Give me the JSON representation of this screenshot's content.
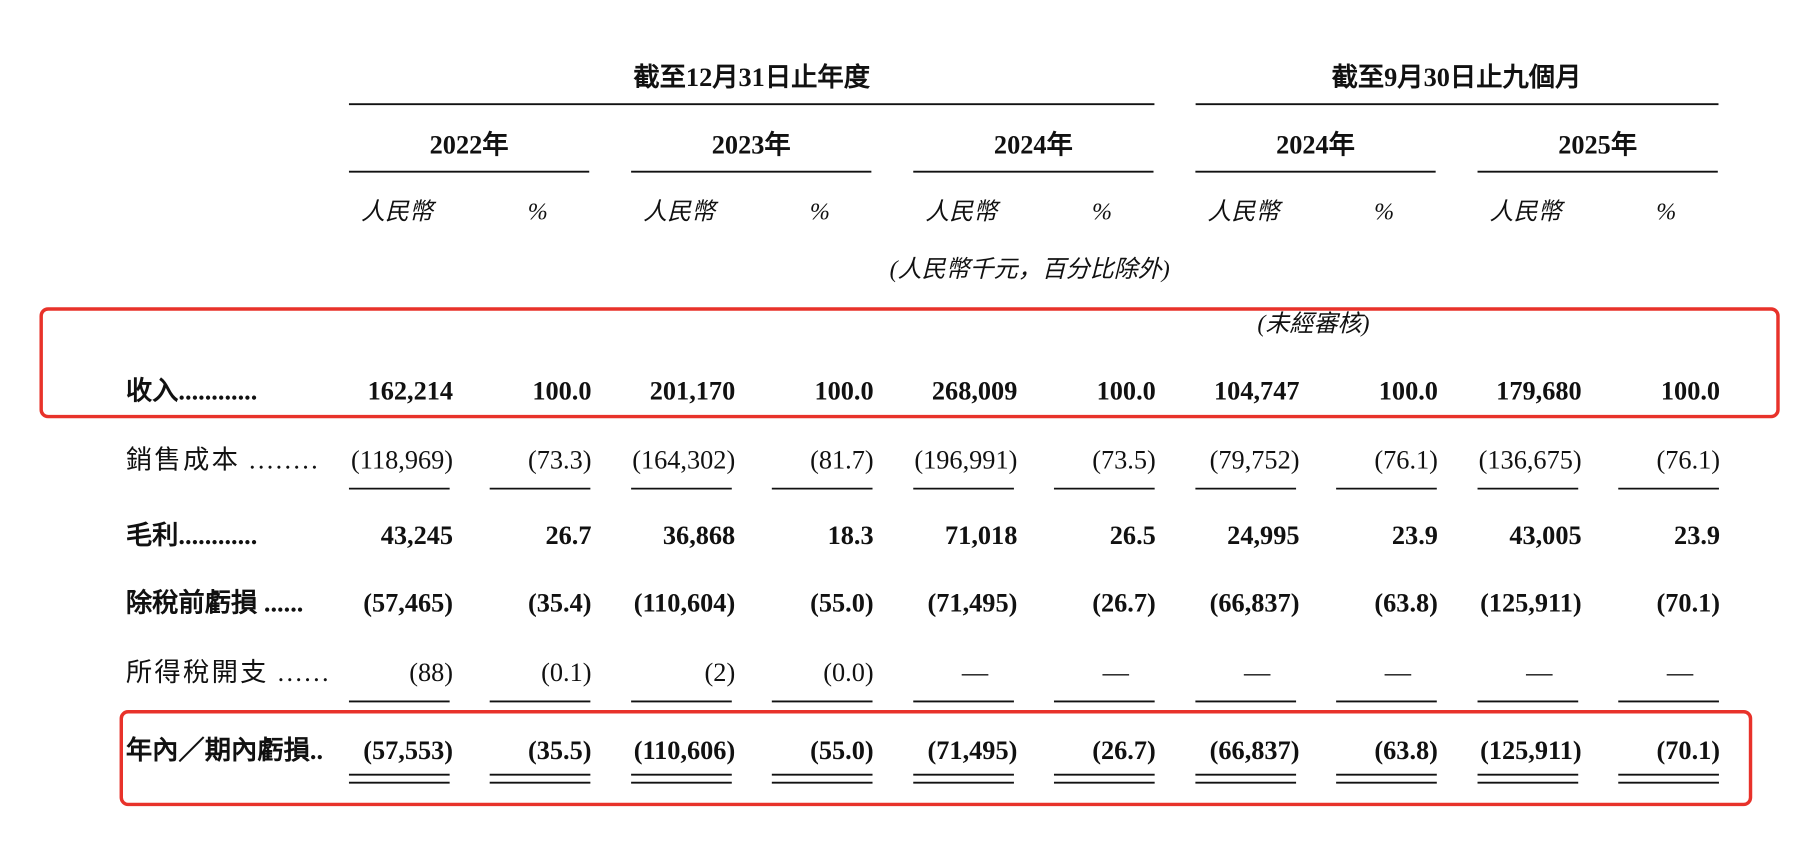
{
  "header": {
    "group1": "截至12月31日止年度",
    "group2": "截至9月30日止九個月",
    "years": [
      "2022年",
      "2023年",
      "2024年",
      "2024年",
      "2025年"
    ],
    "units": [
      "人民幣",
      "%",
      "人民幣",
      "%",
      "人民幣",
      "%",
      "人民幣",
      "%",
      "人民幣",
      "%"
    ],
    "note": "(人民幣千元，百分比除外)",
    "unaudited": "(未經審核)"
  },
  "table": {
    "rows": [
      {
        "label": "收入............",
        "cells": [
          "162,214",
          "100.0",
          "201,170",
          "100.0",
          "268,009",
          "100.0",
          "104,747",
          "100.0",
          "179,680",
          "100.0"
        ]
      },
      {
        "label": "銷售成本 ........",
        "cells": [
          "(118,969)",
          "(73.3)",
          "(164,302)",
          "(81.7)",
          "(196,991)",
          "(73.5)",
          "(79,752)",
          "(76.1)",
          "(136,675)",
          "(76.1)"
        ]
      },
      {
        "label": "毛利............",
        "cells": [
          "43,245",
          "26.7",
          "36,868",
          "18.3",
          "71,018",
          "26.5",
          "24,995",
          "23.9",
          "43,005",
          "23.9"
        ]
      },
      {
        "label": "除稅前虧損 ......",
        "cells": [
          "(57,465)",
          "(35.4)",
          "(110,604)",
          "(55.0)",
          "(71,495)",
          "(26.7)",
          "(66,837)",
          "(63.8)",
          "(125,911)",
          "(70.1)"
        ]
      },
      {
        "label": "所得稅開支 ......",
        "cells": [
          "(88)",
          "(0.1)",
          "(2)",
          "(0.0)",
          "—",
          "—",
          "—",
          "—",
          "—",
          "—"
        ]
      },
      {
        "label": "年內／期內虧損..",
        "cells": [
          "(57,553)",
          "(35.5)",
          "(110,606)",
          "(55.0)",
          "(71,495)",
          "(26.7)",
          "(66,837)",
          "(63.8)",
          "(125,911)",
          "(70.1)"
        ]
      }
    ]
  }
}
